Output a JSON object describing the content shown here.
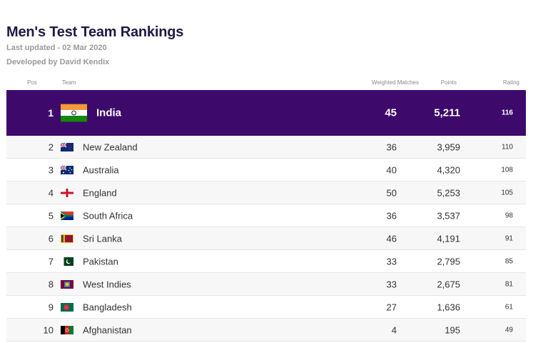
{
  "header": {
    "title": "Men's Test Team Rankings",
    "last_updated": "Last updated - 02 Mar 2020",
    "developer": "Developed by David Kendix"
  },
  "table": {
    "columns": {
      "pos": "Pos",
      "team": "Team",
      "weighted_matches": "Weighted Matches",
      "points": "Points",
      "rating": "Rating"
    },
    "rows": [
      {
        "pos": "1",
        "team": "India",
        "flag_icon": "india-flag-icon",
        "matches": "45",
        "points": "5,211",
        "rating": "116"
      },
      {
        "pos": "2",
        "team": "New Zealand",
        "flag_icon": "new-zealand-flag-icon",
        "matches": "36",
        "points": "3,959",
        "rating": "110"
      },
      {
        "pos": "3",
        "team": "Australia",
        "flag_icon": "australia-flag-icon",
        "matches": "40",
        "points": "4,320",
        "rating": "108"
      },
      {
        "pos": "4",
        "team": "England",
        "flag_icon": "england-flag-icon",
        "matches": "50",
        "points": "5,253",
        "rating": "105"
      },
      {
        "pos": "5",
        "team": "South Africa",
        "flag_icon": "south-africa-flag-icon",
        "matches": "36",
        "points": "3,537",
        "rating": "98"
      },
      {
        "pos": "6",
        "team": "Sri Lanka",
        "flag_icon": "sri-lanka-flag-icon",
        "matches": "46",
        "points": "4,191",
        "rating": "91"
      },
      {
        "pos": "7",
        "team": "Pakistan",
        "flag_icon": "pakistan-flag-icon",
        "matches": "33",
        "points": "2,795",
        "rating": "85"
      },
      {
        "pos": "8",
        "team": "West Indies",
        "flag_icon": "west-indies-flag-icon",
        "matches": "33",
        "points": "2,675",
        "rating": "81"
      },
      {
        "pos": "9",
        "team": "Bangladesh",
        "flag_icon": "bangladesh-flag-icon",
        "matches": "27",
        "points": "1,636",
        "rating": "61"
      },
      {
        "pos": "10",
        "team": "Afghanistan",
        "flag_icon": "afghanistan-flag-icon",
        "matches": "4",
        "points": "195",
        "rating": "49"
      }
    ]
  },
  "colors": {
    "leader_row": "#3d0a6b",
    "title": "#1e1a45"
  }
}
